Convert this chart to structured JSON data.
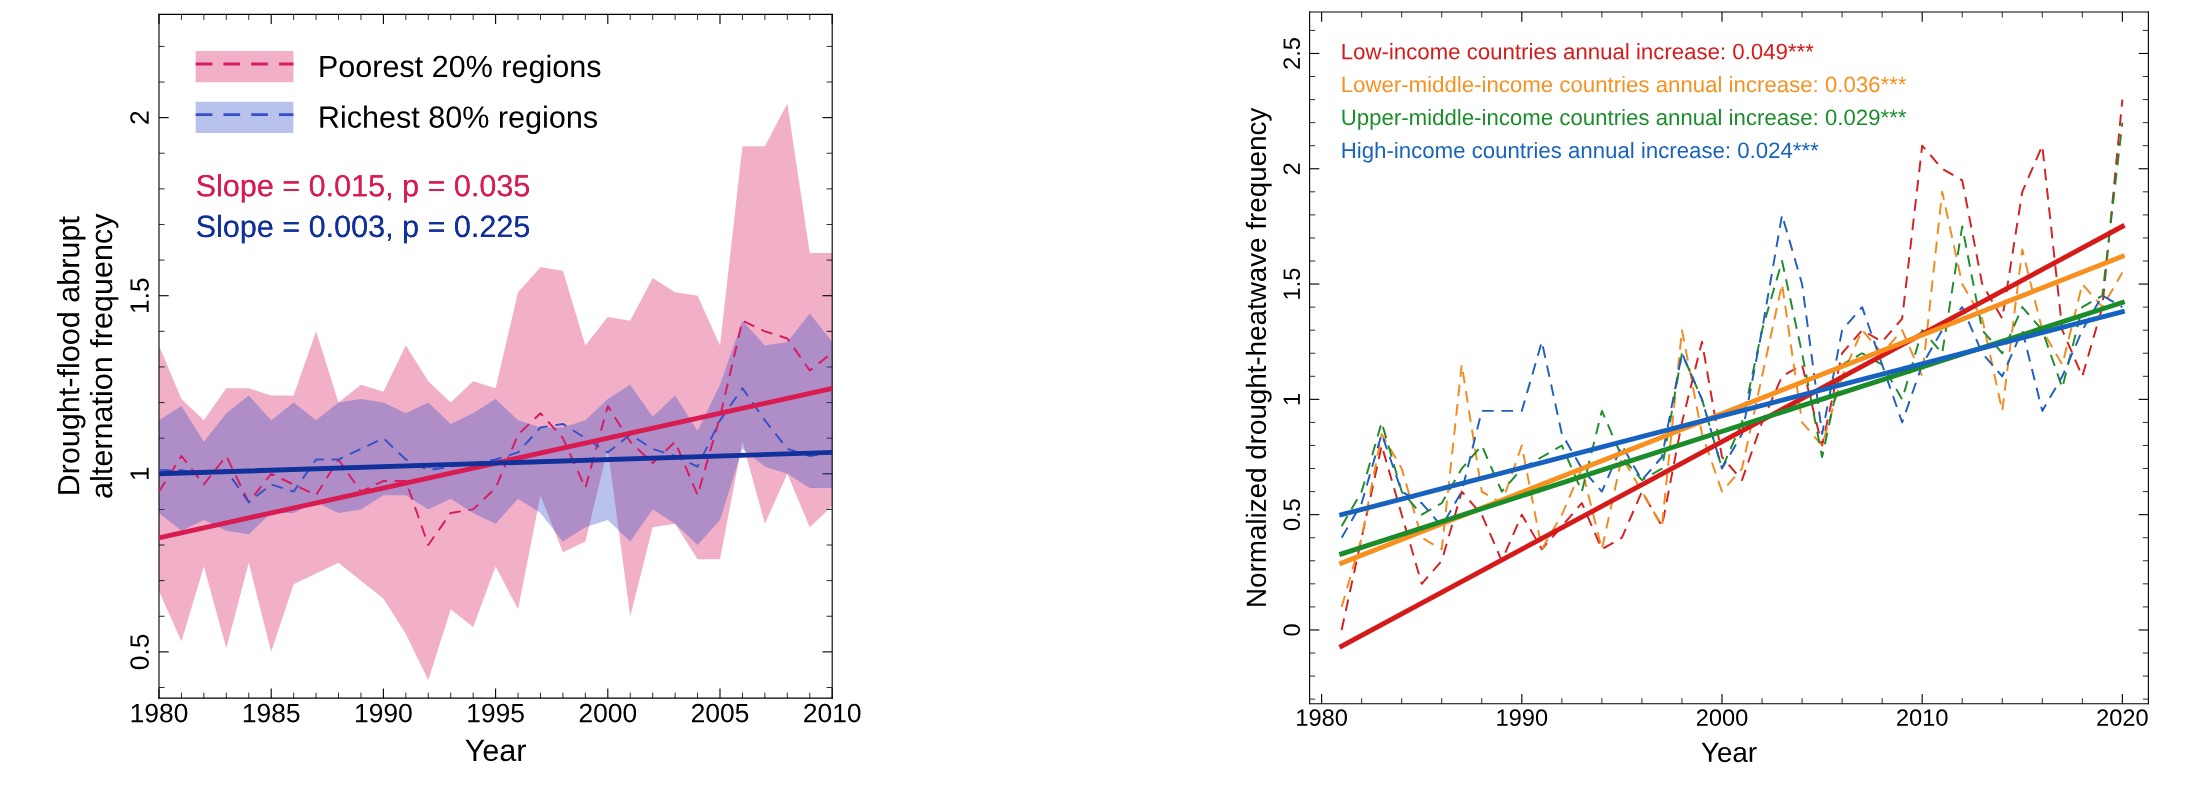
{
  "chart_data": [
    {
      "type": "line",
      "xlabel": "Year",
      "ylabel": "Drought-flood abrupt\nalternation frequency",
      "xlim": [
        1980,
        2010
      ],
      "xticks": [
        1980,
        1985,
        1990,
        1995,
        2000,
        2005,
        2010
      ],
      "ylim": [
        0.37,
        2.29
      ],
      "yticks": [
        0.5,
        1,
        1.5,
        2
      ],
      "grid": false,
      "legend": "top left",
      "marker": "none",
      "x": [
        1980,
        1981,
        1982,
        1983,
        1984,
        1985,
        1986,
        1987,
        1988,
        1989,
        1990,
        1991,
        1992,
        1993,
        1994,
        1995,
        1996,
        1997,
        1998,
        1999,
        2000,
        2001,
        2002,
        2003,
        2004,
        2005,
        2006,
        2007,
        2008,
        2009,
        2010
      ],
      "series": [
        {
          "name": "Poorest 20% regions",
          "color": "#d81b60",
          "line_style": "dashed",
          "values": [
            0.95,
            1.05,
            0.97,
            1.05,
            0.92,
            1.0,
            0.97,
            0.94,
            1.04,
            0.95,
            0.98,
            0.98,
            0.8,
            0.89,
            0.9,
            0.96,
            1.11,
            1.17,
            1.1,
            0.96,
            1.19,
            1.09,
            1.03,
            1.09,
            0.94,
            1.16,
            1.43,
            1.4,
            1.38,
            1.29,
            1.34
          ],
          "lower": [
            0.67,
            0.53,
            0.74,
            0.51,
            0.75,
            0.5,
            0.69,
            0.72,
            0.75,
            0.7,
            0.65,
            0.55,
            0.42,
            0.62,
            0.57,
            0.74,
            0.62,
            0.94,
            0.78,
            0.81,
            1.07,
            0.6,
            0.85,
            0.86,
            0.76,
            0.76,
            1.09,
            0.86,
            1.0,
            0.85,
            0.91
          ],
          "upper": [
            1.36,
            1.21,
            1.15,
            1.24,
            1.24,
            1.22,
            1.22,
            1.4,
            1.2,
            1.25,
            1.23,
            1.36,
            1.26,
            1.2,
            1.26,
            1.24,
            1.51,
            1.58,
            1.57,
            1.36,
            1.44,
            1.43,
            1.55,
            1.51,
            1.5,
            1.36,
            1.92,
            1.92,
            2.04,
            1.62,
            1.62
          ]
        },
        {
          "name": "Richest 80% regions",
          "color": "#3550c8",
          "line_style": "dashed",
          "values": [
            1.01,
            1.01,
            1.0,
            1.01,
            0.92,
            0.97,
            0.95,
            1.04,
            1.04,
            1.07,
            1.1,
            1.04,
            1.01,
            1.02,
            1.03,
            1.04,
            1.06,
            1.13,
            1.14,
            1.1,
            1.06,
            1.11,
            1.07,
            1.05,
            1.02,
            1.15,
            1.24,
            1.15,
            1.07,
            1.05,
            1.06
          ],
          "lower": [
            0.89,
            0.84,
            0.87,
            0.84,
            0.83,
            0.89,
            0.89,
            0.92,
            0.89,
            0.9,
            0.94,
            0.94,
            0.9,
            0.93,
            0.89,
            0.86,
            0.93,
            0.89,
            0.81,
            0.85,
            0.87,
            0.81,
            0.9,
            0.86,
            0.8,
            0.87,
            1.07,
            1.02,
            1.0,
            0.96,
            0.96
          ],
          "upper": [
            1.15,
            1.19,
            1.09,
            1.17,
            1.22,
            1.15,
            1.2,
            1.15,
            1.2,
            1.21,
            1.2,
            1.17,
            1.2,
            1.14,
            1.17,
            1.21,
            1.15,
            1.13,
            1.13,
            1.15,
            1.21,
            1.25,
            1.16,
            1.22,
            1.12,
            1.25,
            1.43,
            1.36,
            1.37,
            1.45,
            1.37
          ]
        },
        {
          "name": "Slope = 0.015, p = 0.035",
          "color": "#d81b50",
          "line_style": "solid",
          "x": [
            1980,
            2010
          ],
          "values": [
            0.82,
            1.24
          ]
        },
        {
          "name": "Slope = 0.003, p = 0.225",
          "color": "#10309a",
          "line_style": "solid",
          "x": [
            1980,
            2010
          ],
          "values": [
            1.0,
            1.06
          ]
        }
      ]
    },
    {
      "type": "line",
      "xlabel": "Year",
      "ylabel": "Normalized drought-heatwave frequency",
      "xlim": [
        1979.4,
        2021.3
      ],
      "xticks": [
        1980,
        1990,
        2000,
        2010,
        2020
      ],
      "ylim": [
        -0.32,
        2.68
      ],
      "yticks": [
        0,
        0.5,
        1,
        1.5,
        2,
        2.5
      ],
      "grid": false,
      "legend": "top left",
      "marker": "none",
      "x": [
        1981,
        1982,
        1983,
        1984,
        1985,
        1986,
        1987,
        1988,
        1989,
        1990,
        1991,
        1992,
        1993,
        1994,
        1995,
        1996,
        1997,
        1998,
        1999,
        2000,
        2001,
        2002,
        2003,
        2004,
        2005,
        2006,
        2007,
        2008,
        2009,
        2010,
        2011,
        2012,
        2013,
        2014,
        2015,
        2016,
        2017,
        2018,
        2019,
        2020
      ],
      "series": [
        {
          "color": "#d62020",
          "line_style": "dashed",
          "values": [
            0.0,
            0.4,
            0.8,
            0.5,
            0.2,
            0.3,
            0.6,
            0.5,
            0.3,
            0.5,
            0.35,
            0.45,
            0.55,
            0.35,
            0.4,
            0.6,
            0.45,
            0.9,
            1.25,
            0.75,
            0.65,
            0.9,
            1.1,
            1.15,
            0.8,
            1.2,
            1.3,
            1.25,
            1.35,
            2.1,
            2.0,
            1.95,
            1.5,
            1.35,
            1.9,
            2.1,
            1.3,
            1.1,
            1.4,
            2.3
          ]
        },
        {
          "color": "#f28a1e",
          "line_style": "dashed",
          "values": [
            0.1,
            0.4,
            0.85,
            0.7,
            0.4,
            0.35,
            1.15,
            0.6,
            0.55,
            0.8,
            0.35,
            0.5,
            0.7,
            0.35,
            0.75,
            0.6,
            0.45,
            1.3,
            0.85,
            0.6,
            0.7,
            1.1,
            1.5,
            0.9,
            0.8,
            1.1,
            1.3,
            1.2,
            1.3,
            1.1,
            1.9,
            1.5,
            1.35,
            0.95,
            1.65,
            1.3,
            1.15,
            1.5,
            1.4,
            1.55
          ]
        },
        {
          "color": "#1e8c2a",
          "line_style": "dashed",
          "values": [
            0.45,
            0.6,
            0.9,
            0.6,
            0.5,
            0.55,
            0.7,
            0.8,
            0.6,
            0.7,
            0.75,
            0.8,
            0.6,
            0.95,
            0.75,
            0.65,
            0.7,
            1.2,
            1.0,
            0.7,
            0.9,
            1.3,
            1.6,
            1.2,
            0.75,
            1.15,
            1.2,
            1.15,
            1.0,
            1.3,
            1.2,
            1.75,
            1.3,
            1.2,
            1.4,
            1.3,
            1.05,
            1.4,
            1.45,
            2.2
          ]
        },
        {
          "color": "#1f5fbf",
          "line_style": "dashed",
          "values": [
            0.4,
            0.55,
            0.85,
            0.6,
            0.55,
            0.45,
            0.6,
            0.95,
            0.95,
            0.95,
            1.25,
            0.85,
            0.7,
            0.6,
            0.8,
            0.65,
            0.75,
            1.2,
            1.0,
            0.7,
            0.85,
            1.3,
            1.8,
            1.5,
            0.85,
            1.3,
            1.4,
            1.15,
            0.9,
            1.15,
            1.3,
            1.4,
            1.2,
            1.1,
            1.3,
            0.95,
            1.1,
            1.3,
            1.45,
            1.4
          ]
        },
        {
          "name": "Low-income countries annual increase: 0.049***",
          "color": "#d61a1a",
          "line_style": "solid",
          "x": [
            1981,
            2020
          ],
          "values": [
            -0.07,
            1.75
          ]
        },
        {
          "name": "Lower-middle-income countries annual increase: 0.036***",
          "color": "#f7901e",
          "line_style": "solid",
          "x": [
            1981,
            2020
          ],
          "values": [
            0.29,
            1.62
          ]
        },
        {
          "name": "Upper-middle-income countries annual increase: 0.029***",
          "color": "#1a8c2a",
          "line_style": "solid",
          "x": [
            1981,
            2020
          ],
          "values": [
            0.33,
            1.42
          ]
        },
        {
          "name": "High-income countries annual increase: 0.024***",
          "color": "#1762bf",
          "line_style": "solid",
          "x": [
            1981,
            2020
          ],
          "values": [
            0.5,
            1.38
          ]
        }
      ]
    }
  ]
}
